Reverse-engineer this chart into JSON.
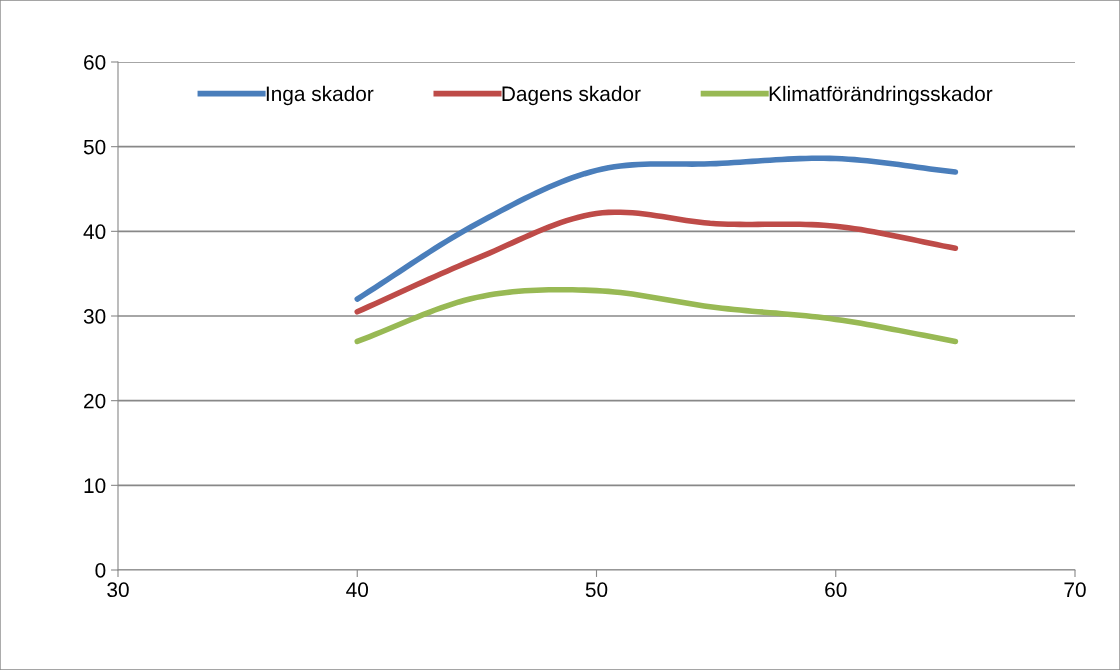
{
  "chart_data": {
    "type": "line",
    "x": [
      40,
      45,
      50,
      55,
      60,
      65
    ],
    "series": [
      {
        "name": "Inga skador",
        "color": "#4a7ebb",
        "values": [
          32,
          40.9,
          47.2,
          48,
          48.6,
          47
        ]
      },
      {
        "name": "Dagens skador",
        "color": "#be4b48",
        "values": [
          30.5,
          36.8,
          42.1,
          40.9,
          40.6,
          38
        ]
      },
      {
        "name": "Klimatförändringsskador",
        "color": "#98b954",
        "values": [
          27,
          32.2,
          33,
          31,
          29.6,
          27
        ]
      }
    ],
    "xlim": [
      30,
      70
    ],
    "xticks": [
      30,
      40,
      50,
      60,
      70
    ],
    "ylim": [
      0,
      60
    ],
    "yticks": [
      0,
      10,
      20,
      30,
      40,
      50,
      60
    ],
    "grid": "y",
    "legend": "top",
    "marker": "none",
    "line_style": "solid"
  }
}
